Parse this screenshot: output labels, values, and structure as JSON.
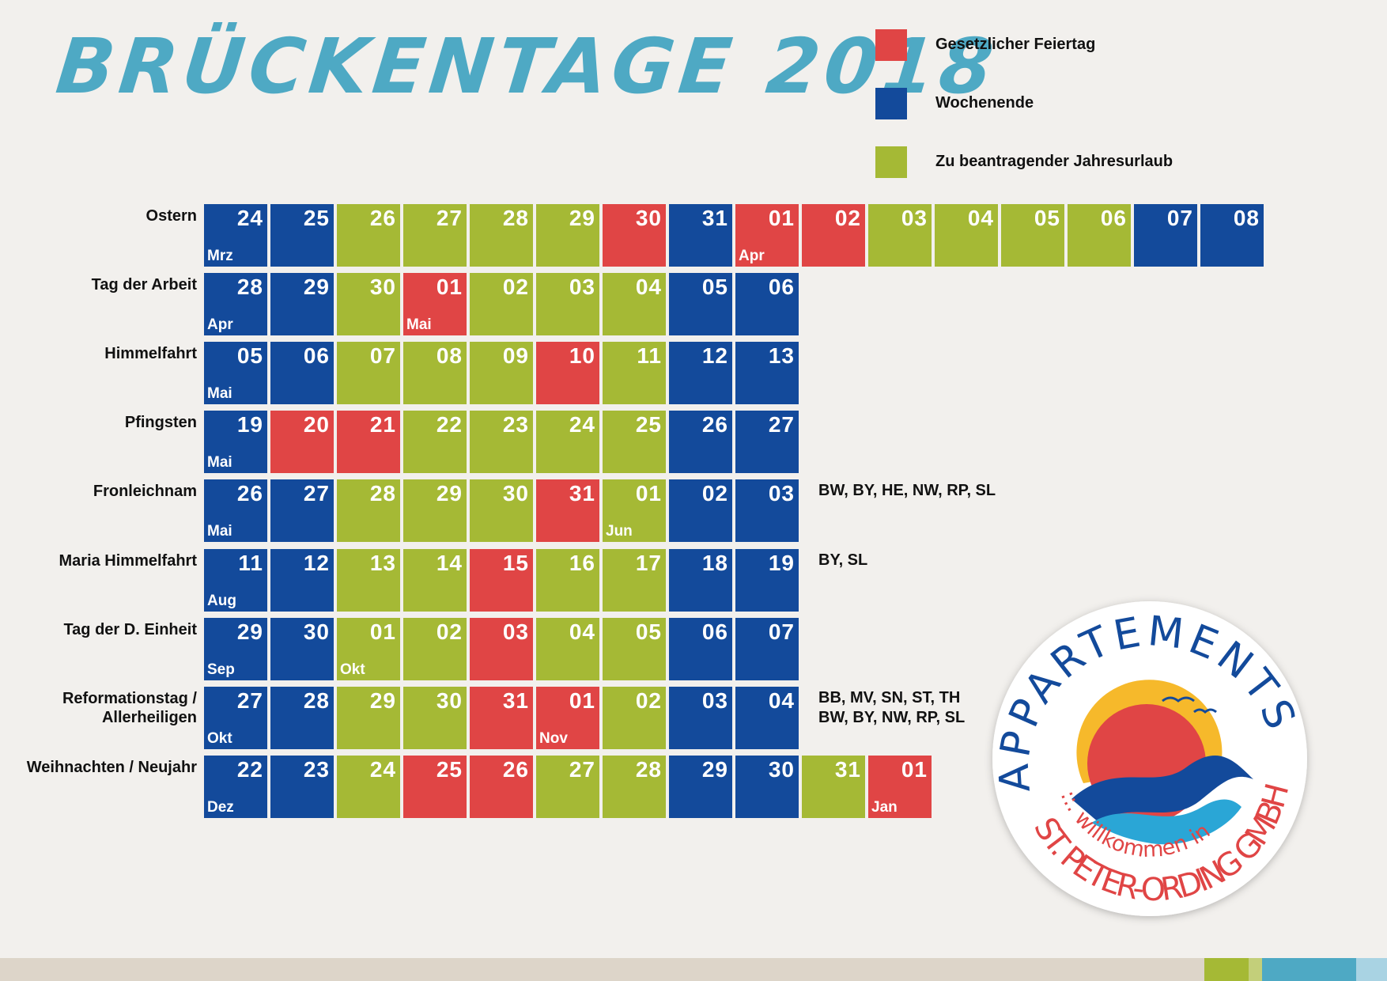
{
  "title": "BRÜCKENTAGE 2018",
  "legend": [
    {
      "label": "Gesetzlicher Feiertag",
      "color": "#e04545"
    },
    {
      "label": "Wochenende",
      "color": "#134a9b"
    },
    {
      "label": "Zu beantragender Jahresurlaub",
      "color": "#a5b935"
    }
  ],
  "rows": [
    {
      "label": [
        "Ostern"
      ],
      "days": [
        {
          "d": "24",
          "t": 1,
          "m": "Mrz"
        },
        {
          "d": "25",
          "t": 1
        },
        {
          "d": "26",
          "t": 2
        },
        {
          "d": "27",
          "t": 2
        },
        {
          "d": "28",
          "t": 2
        },
        {
          "d": "29",
          "t": 2
        },
        {
          "d": "30",
          "t": 0
        },
        {
          "d": "31",
          "t": 1
        },
        {
          "d": "01",
          "t": 0,
          "m": "Apr"
        },
        {
          "d": "02",
          "t": 0
        },
        {
          "d": "03",
          "t": 2
        },
        {
          "d": "04",
          "t": 2
        },
        {
          "d": "05",
          "t": 2
        },
        {
          "d": "06",
          "t": 2
        },
        {
          "d": "07",
          "t": 1
        },
        {
          "d": "08",
          "t": 1
        }
      ]
    },
    {
      "label": [
        "Tag der Arbeit"
      ],
      "days": [
        {
          "d": "28",
          "t": 1,
          "m": "Apr"
        },
        {
          "d": "29",
          "t": 1
        },
        {
          "d": "30",
          "t": 2
        },
        {
          "d": "01",
          "t": 0,
          "m": "Mai"
        },
        {
          "d": "02",
          "t": 2
        },
        {
          "d": "03",
          "t": 2
        },
        {
          "d": "04",
          "t": 2
        },
        {
          "d": "05",
          "t": 1
        },
        {
          "d": "06",
          "t": 1
        }
      ]
    },
    {
      "label": [
        "Himmelfahrt"
      ],
      "days": [
        {
          "d": "05",
          "t": 1,
          "m": "Mai"
        },
        {
          "d": "06",
          "t": 1
        },
        {
          "d": "07",
          "t": 2
        },
        {
          "d": "08",
          "t": 2
        },
        {
          "d": "09",
          "t": 2
        },
        {
          "d": "10",
          "t": 0
        },
        {
          "d": "11",
          "t": 2
        },
        {
          "d": "12",
          "t": 1
        },
        {
          "d": "13",
          "t": 1
        }
      ]
    },
    {
      "label": [
        "Pfingsten"
      ],
      "days": [
        {
          "d": "19",
          "t": 1,
          "m": "Mai"
        },
        {
          "d": "20",
          "t": 0
        },
        {
          "d": "21",
          "t": 0
        },
        {
          "d": "22",
          "t": 2
        },
        {
          "d": "23",
          "t": 2
        },
        {
          "d": "24",
          "t": 2
        },
        {
          "d": "25",
          "t": 2
        },
        {
          "d": "26",
          "t": 1
        },
        {
          "d": "27",
          "t": 1
        }
      ]
    },
    {
      "label": [
        "Fronleichnam"
      ],
      "days": [
        {
          "d": "26",
          "t": 1,
          "m": "Mai"
        },
        {
          "d": "27",
          "t": 1
        },
        {
          "d": "28",
          "t": 2
        },
        {
          "d": "29",
          "t": 2
        },
        {
          "d": "30",
          "t": 2
        },
        {
          "d": "31",
          "t": 0
        },
        {
          "d": "01",
          "t": 2,
          "m": "Jun"
        },
        {
          "d": "02",
          "t": 1
        },
        {
          "d": "03",
          "t": 1
        }
      ],
      "notes": [
        "BW, BY, HE, NW, RP, SL"
      ]
    },
    {
      "label": [
        "Maria Himmelfahrt"
      ],
      "days": [
        {
          "d": "11",
          "t": 1,
          "m": "Aug"
        },
        {
          "d": "12",
          "t": 1
        },
        {
          "d": "13",
          "t": 2
        },
        {
          "d": "14",
          "t": 2
        },
        {
          "d": "15",
          "t": 0
        },
        {
          "d": "16",
          "t": 2
        },
        {
          "d": "17",
          "t": 2
        },
        {
          "d": "18",
          "t": 1
        },
        {
          "d": "19",
          "t": 1
        }
      ],
      "notes": [
        "BY, SL"
      ]
    },
    {
      "label": [
        "Tag der D. Einheit"
      ],
      "days": [
        {
          "d": "29",
          "t": 1,
          "m": "Sep"
        },
        {
          "d": "30",
          "t": 1
        },
        {
          "d": "01",
          "t": 2,
          "m": "Okt"
        },
        {
          "d": "02",
          "t": 2
        },
        {
          "d": "03",
          "t": 0
        },
        {
          "d": "04",
          "t": 2
        },
        {
          "d": "05",
          "t": 2
        },
        {
          "d": "06",
          "t": 1
        },
        {
          "d": "07",
          "t": 1
        }
      ]
    },
    {
      "label": [
        "Reformationstag /",
        "Allerheiligen"
      ],
      "days": [
        {
          "d": "27",
          "t": 1,
          "m": "Okt"
        },
        {
          "d": "28",
          "t": 1
        },
        {
          "d": "29",
          "t": 2
        },
        {
          "d": "30",
          "t": 2
        },
        {
          "d": "31",
          "t": 0
        },
        {
          "d": "01",
          "t": 0,
          "m": "Nov"
        },
        {
          "d": "02",
          "t": 2
        },
        {
          "d": "03",
          "t": 1
        },
        {
          "d": "04",
          "t": 1
        }
      ],
      "notes": [
        "BB, MV, SN, ST, TH",
        "BW, BY, NW, RP, SL"
      ]
    },
    {
      "label": [
        "Weihnachten / Neujahr"
      ],
      "days": [
        {
          "d": "22",
          "t": 1,
          "m": "Dez"
        },
        {
          "d": "23",
          "t": 1
        },
        {
          "d": "24",
          "t": 2
        },
        {
          "d": "25",
          "t": 0
        },
        {
          "d": "26",
          "t": 0
        },
        {
          "d": "27",
          "t": 2
        },
        {
          "d": "28",
          "t": 2
        },
        {
          "d": "29",
          "t": 1
        },
        {
          "d": "30",
          "t": 1
        },
        {
          "d": "31",
          "t": 2
        },
        {
          "d": "01",
          "t": 0,
          "m": "Jan"
        }
      ]
    }
  ],
  "logo": {
    "top": "APPARTEMENTS",
    "middle": "::. willkommen in",
    "bottom": "ST. PETER-ORDING GMBH"
  }
}
